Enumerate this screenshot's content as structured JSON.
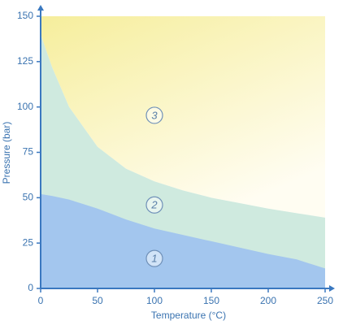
{
  "chart_data": {
    "type": "area",
    "x_label": "Temperature (°C)",
    "y_label": "Pressure (bar)",
    "x": [
      0,
      10,
      25,
      50,
      75,
      100,
      125,
      150,
      175,
      200,
      225,
      250
    ],
    "series": [
      {
        "color": "#a3c6ee",
        "values": [
          52,
          51,
          49,
          44,
          38,
          33,
          29.5,
          26,
          22.5,
          19,
          16,
          11
        ]
      },
      {
        "color": "#cfeadf",
        "values": [
          140,
          122,
          100,
          78,
          66,
          59,
          54,
          50,
          47,
          44,
          41.5,
          39
        ]
      }
    ],
    "top_color": "#f6ee9c",
    "region_labels": [
      "1",
      "2",
      "3"
    ],
    "xlim": [
      0,
      250
    ],
    "xticks": [
      0,
      50,
      100,
      150,
      200,
      250
    ],
    "ylim": [
      0,
      150
    ],
    "yticks": [
      0,
      25,
      50,
      75,
      100,
      125,
      150
    ]
  }
}
